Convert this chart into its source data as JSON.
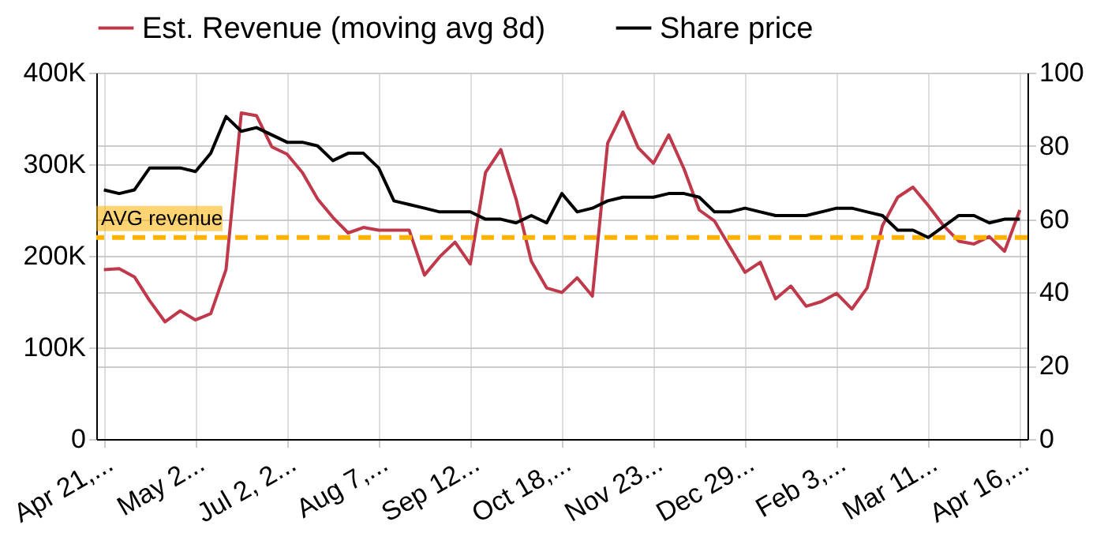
{
  "chart_data": {
    "type": "line",
    "categories": [
      "Apr 21,...",
      null,
      null,
      null,
      null,
      null,
      "May 2...",
      null,
      null,
      null,
      null,
      null,
      "Jul 2, 2...",
      null,
      null,
      null,
      null,
      null,
      "Aug 7,...",
      null,
      null,
      null,
      null,
      null,
      "Sep 12...",
      null,
      null,
      null,
      null,
      null,
      "Oct 18,...",
      null,
      null,
      null,
      null,
      null,
      "Nov 23...",
      null,
      null,
      null,
      null,
      null,
      "Dec 29...",
      null,
      null,
      null,
      null,
      null,
      "Feb 3,...",
      null,
      null,
      null,
      null,
      null,
      "Mar 11...",
      null,
      null,
      null,
      null,
      null,
      "Apr 16,..."
    ],
    "series": [
      {
        "name": "Est. Revenue (moving avg 8d)",
        "color": "#c0394b",
        "values": [
          185000,
          186000,
          177000,
          151000,
          128000,
          140000,
          130000,
          137000,
          185000,
          356000,
          353000,
          319000,
          311000,
          291000,
          262000,
          242000,
          225000,
          231000,
          228000,
          228000,
          228000,
          179000,
          199000,
          215000,
          191000,
          291000,
          316000,
          262000,
          194000,
          165000,
          160000,
          176000,
          156000,
          323000,
          357000,
          318000,
          301000,
          332000,
          295000,
          250000,
          238000,
          210000,
          182000,
          193000,
          153000,
          167000,
          145000,
          150000,
          159000,
          142000,
          165000,
          233000,
          264000,
          275000,
          255000,
          233000,
          216000,
          213000,
          221000,
          205000,
          250000
        ]
      },
      {
        "name": "Share price",
        "color": "#000000",
        "axis": "y2",
        "values": [
          68,
          67,
          68,
          74,
          74,
          74,
          73,
          78,
          88,
          84,
          85,
          83,
          81,
          81,
          80,
          76,
          78,
          78,
          74,
          65,
          64,
          63,
          62,
          62,
          62,
          60,
          60,
          59,
          61,
          59,
          67,
          62,
          63,
          65,
          66,
          66,
          66,
          67,
          67,
          66,
          62,
          62,
          63,
          62,
          61,
          61,
          61,
          62,
          63,
          63,
          62,
          61,
          57,
          57,
          55,
          58,
          61,
          61,
          59,
          60,
          60
        ]
      }
    ],
    "ylim": [
      0,
      400000
    ],
    "yticks": [
      {
        "value": 0,
        "label": "0"
      },
      {
        "value": 100000,
        "label": "100K"
      },
      {
        "value": 200000,
        "label": "200K"
      },
      {
        "value": 300000,
        "label": "300K"
      },
      {
        "value": 400000,
        "label": "400K"
      }
    ],
    "y2lim": [
      0,
      100
    ],
    "y2ticks": [
      0,
      20,
      40,
      60,
      80,
      100
    ],
    "ref_lines": [
      {
        "axis": "y",
        "value": 220000,
        "label": "AVG revenue",
        "color": "#ffb300",
        "line_style": "dashed"
      }
    ],
    "grid": true,
    "legend": "top",
    "marker": "none",
    "line_style": "solid"
  }
}
